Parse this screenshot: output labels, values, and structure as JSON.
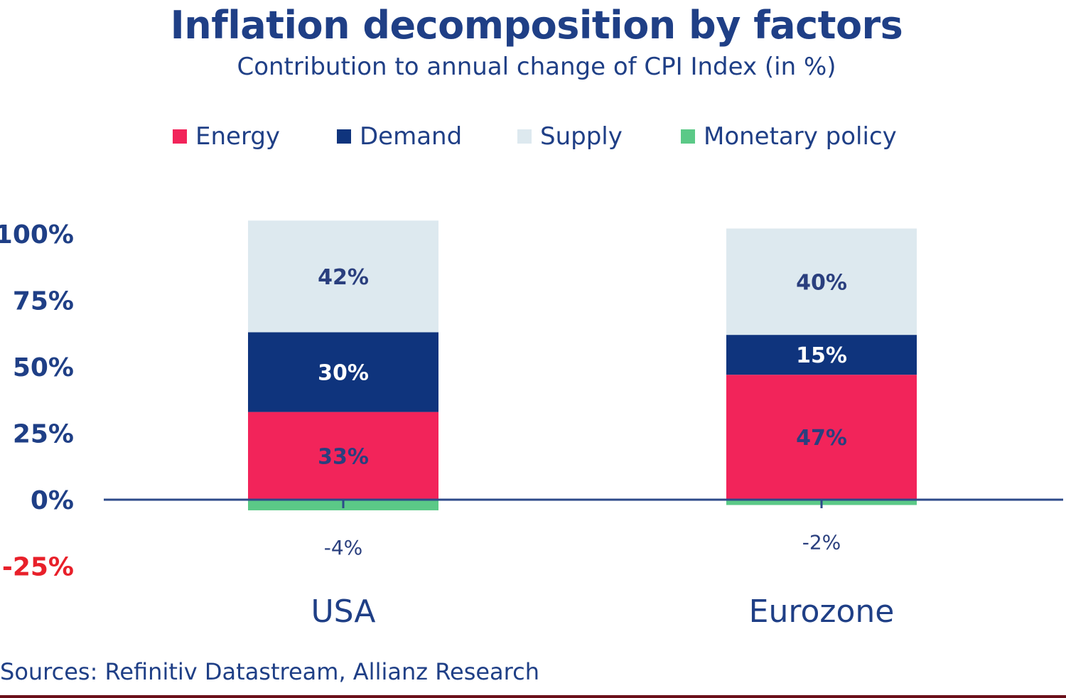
{
  "chart_data": {
    "type": "bar",
    "stacked": true,
    "title": "Inflation decomposition by factors",
    "subtitle": "Contribution to annual change of CPI Index (in %)",
    "categories": [
      "USA",
      "Eurozone"
    ],
    "series": [
      {
        "name": "Energy",
        "color": "#f2245a",
        "values": [
          33,
          47
        ],
        "labels": [
          "33%",
          "47%"
        ],
        "label_color": "#2a3f7e"
      },
      {
        "name": "Demand",
        "color": "#0f347d",
        "values": [
          30,
          15
        ],
        "labels": [
          "30%",
          "15%"
        ],
        "label_color": "#ffffff"
      },
      {
        "name": "Supply",
        "color": "#dde9ef",
        "values": [
          42,
          40
        ],
        "labels": [
          "42%",
          "40%"
        ],
        "label_color": "#2a3f7e"
      },
      {
        "name": "Monetary policy",
        "color": "#5bc987",
        "values": [
          -4,
          -2
        ],
        "labels": [
          "-4%",
          "-2%"
        ],
        "label_color": "#2a3f7e"
      }
    ],
    "yaxis": {
      "ticks": [
        100,
        75,
        50,
        25,
        0,
        -25
      ],
      "tick_labels": [
        "100%",
        "75%",
        "50%",
        "25%",
        "0%",
        "-25%"
      ],
      "tick_colors": [
        "#1f3f86",
        "#1f3f86",
        "#1f3f86",
        "#1f3f86",
        "#1f3f86",
        "#e8202a"
      ]
    },
    "legend_position": "top",
    "source": "Sources: Refinitiv Datastream, Allianz Research"
  }
}
